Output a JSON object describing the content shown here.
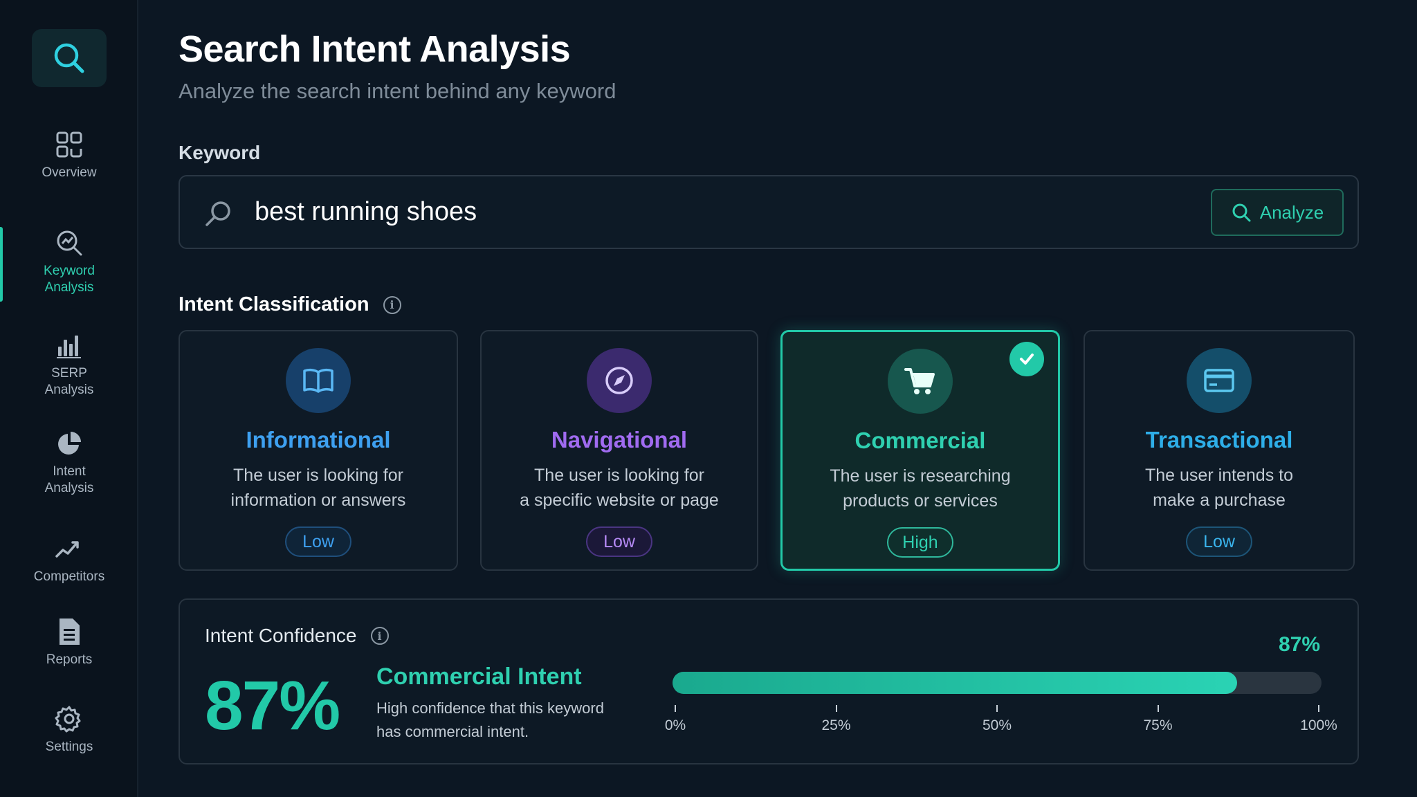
{
  "sidebar": {
    "items": [
      {
        "label": "Overview",
        "icon": "grid-icon"
      },
      {
        "label": "Keyword\nAnalysis",
        "icon": "keyword-search-icon"
      },
      {
        "label": "SERP\nAnalysis",
        "icon": "bar-chart-icon"
      },
      {
        "label": "Intent\nAnalysis",
        "icon": "pie-chart-icon"
      },
      {
        "label": "Competitors",
        "icon": "trend-line-icon"
      },
      {
        "label": "Reports",
        "icon": "document-icon"
      },
      {
        "label": "Settings",
        "icon": "gear-icon"
      }
    ],
    "active_index": 1
  },
  "header": {
    "title": "Search Intent Analysis",
    "subtitle": "Analyze the search intent behind any keyword"
  },
  "keyword": {
    "label": "Keyword",
    "value": "best running shoes",
    "analyze_label": "Analyze"
  },
  "classification": {
    "title": "Intent Classification",
    "cards": [
      {
        "name": "Informational",
        "desc": "The user is looking for\ninformation or answers",
        "level": "Low",
        "icon": "book-icon",
        "color": "#3ea0f0",
        "selected": false
      },
      {
        "name": "Navigational",
        "desc": "The user is looking for\na specific website or page",
        "level": "Low",
        "icon": "compass-icon",
        "color": "#a06bf0",
        "selected": false
      },
      {
        "name": "Commercial",
        "desc": "The user is researching\nproducts or services",
        "level": "High",
        "icon": "cart-icon",
        "color": "#2fd0b0",
        "selected": true
      },
      {
        "name": "Transactional",
        "desc": "The user intends to\nmake a purchase",
        "level": "Low",
        "icon": "credit-card-icon",
        "color": "#2eaee8",
        "selected": false
      }
    ]
  },
  "confidence": {
    "title": "Intent Confidence",
    "value_text": "87%",
    "intent_label": "Commercial Intent",
    "description": "High confidence that this keyword\nhas commercial intent.",
    "bar_label": "87%",
    "fraction": 0.87,
    "ticks": [
      "0%",
      "25%",
      "50%",
      "75%",
      "100%"
    ]
  }
}
